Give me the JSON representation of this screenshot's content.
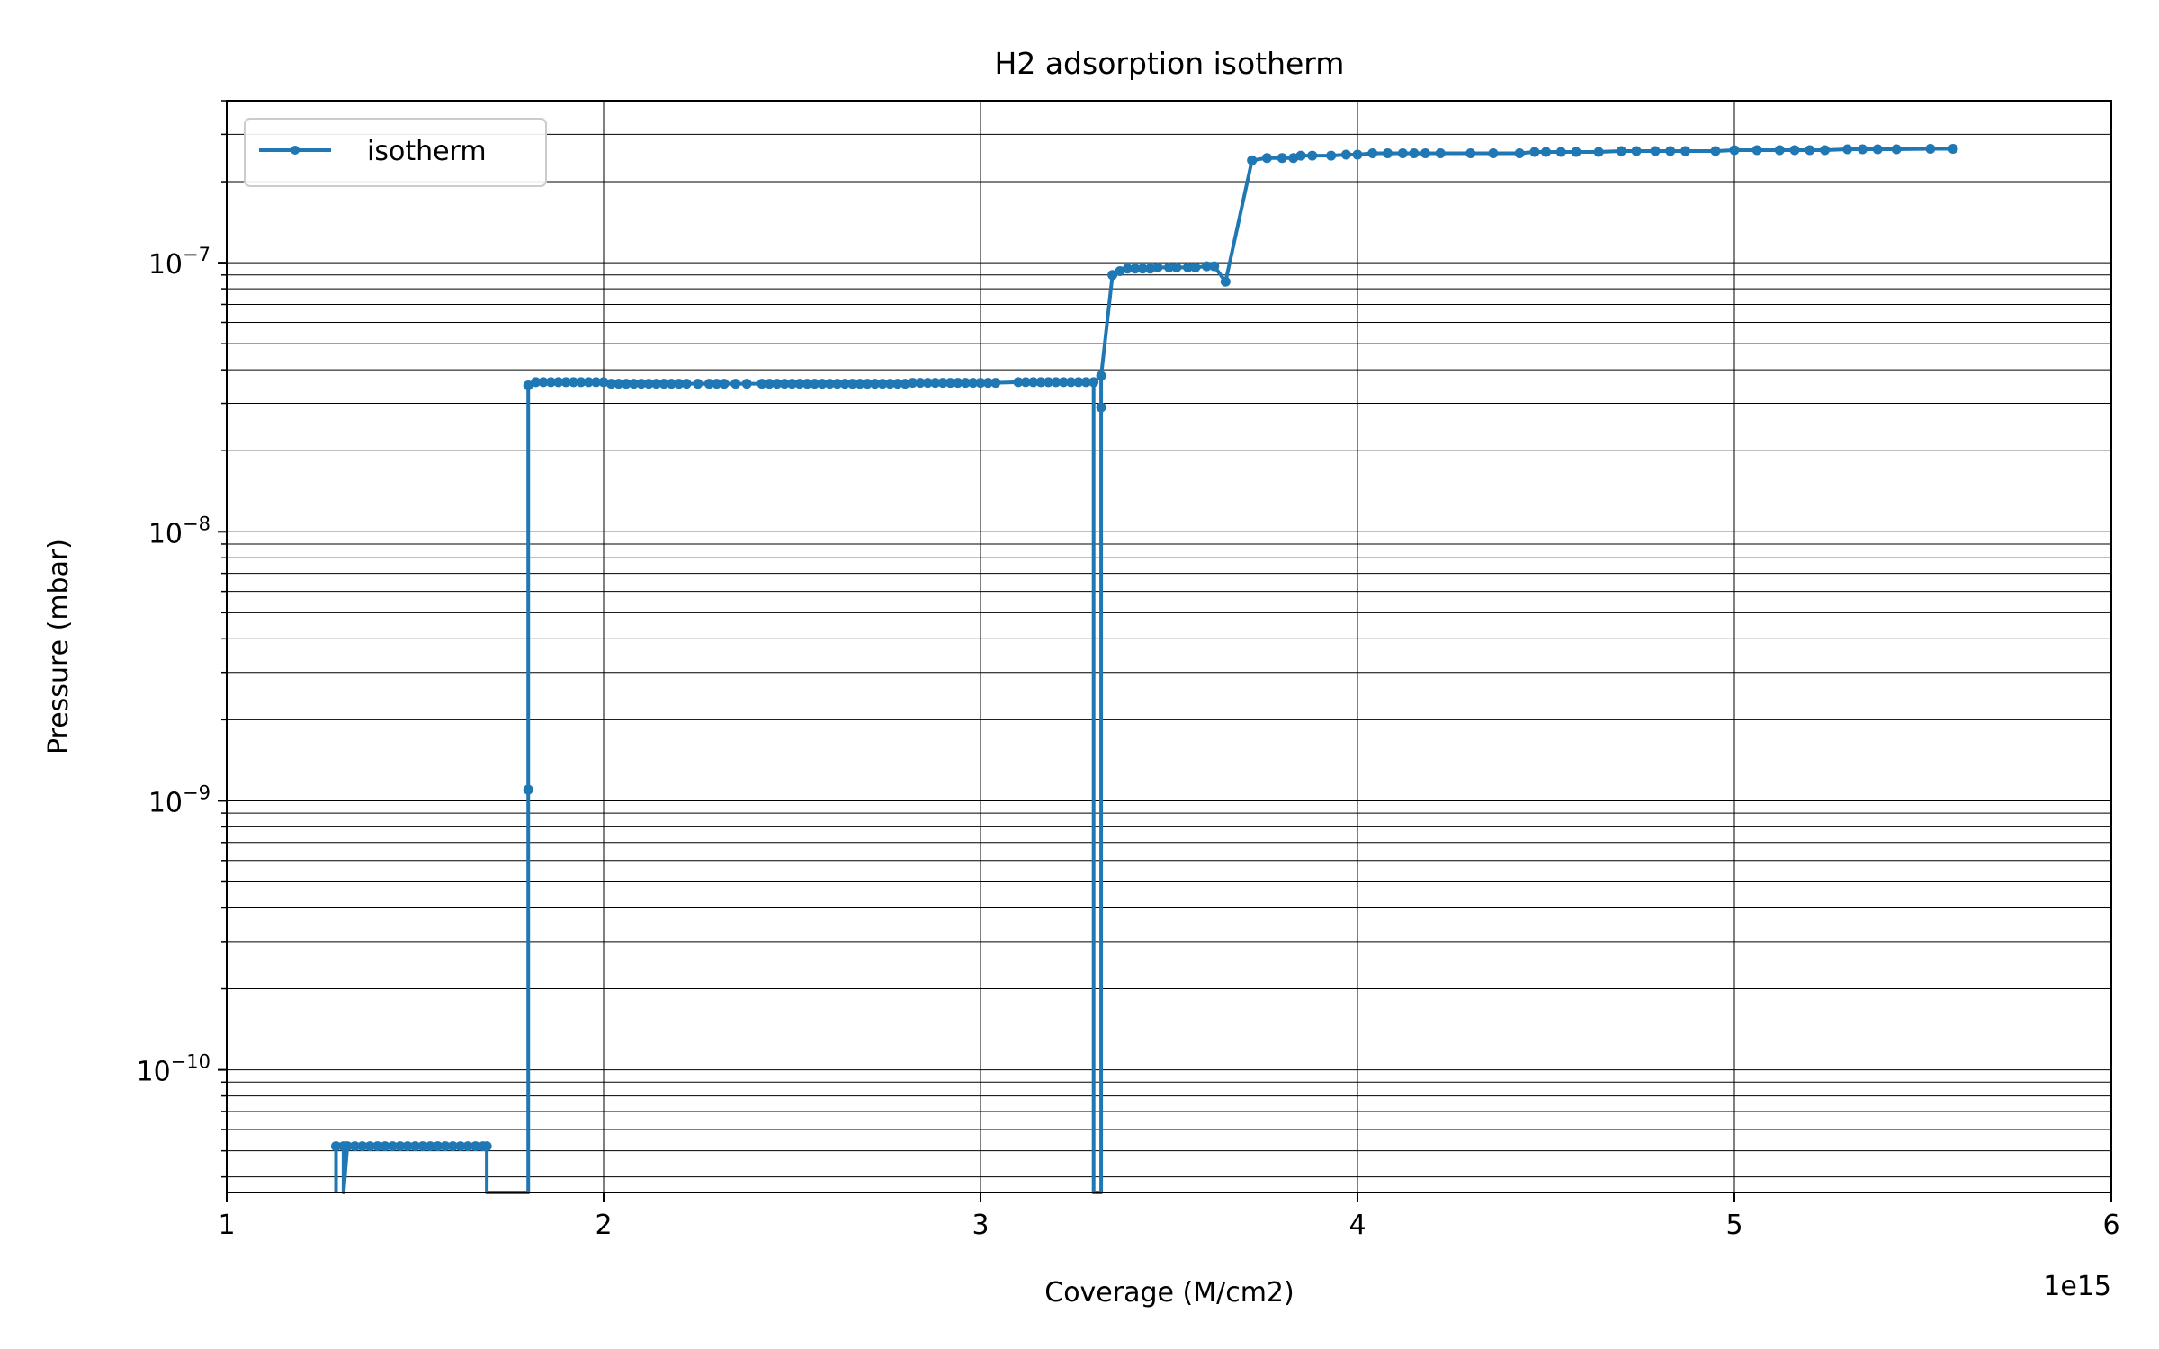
{
  "chart_data": {
    "type": "line",
    "title": "H2 adsorption isotherm",
    "xlabel": "Coverage (M/cm2)",
    "ylabel": "Pressure (mbar)",
    "x_offset_label": "1e15",
    "xscale": "linear",
    "yscale": "log",
    "xlim": [
      1000000000000000.0,
      6000000000000000.0
    ],
    "ylim": [
      3.5e-11,
      4e-07
    ],
    "grid": "major and minor",
    "legend_position": "upper left",
    "x_ticks": [
      1000000000000000.0,
      2000000000000000.0,
      3000000000000000.0,
      4000000000000000.0,
      5000000000000000.0,
      6000000000000000.0
    ],
    "x_tick_labels": [
      "1",
      "2",
      "3",
      "4",
      "5",
      "6"
    ],
    "y_ticks": [
      1e-10,
      1e-09,
      1e-08,
      1e-07
    ],
    "y_tick_labels": [
      {
        "base": "10",
        "exp": "−10"
      },
      {
        "base": "10",
        "exp": "−9"
      },
      {
        "base": "10",
        "exp": "−8"
      },
      {
        "base": "10",
        "exp": "−7"
      }
    ],
    "series": [
      {
        "name": "isotherm",
        "color": "#1f77b4",
        "marker": "circle",
        "points": [
          [
            1290000000000000.0,
            0
          ],
          [
            1290000000000000.0,
            5.2e-11
          ],
          [
            1310000000000000.0,
            5.2e-11
          ],
          [
            1310000000000000.0,
            0
          ],
          [
            1320000000000000.0,
            5.2e-11
          ],
          [
            1340000000000000.0,
            5.2e-11
          ],
          [
            1360000000000000.0,
            5.2e-11
          ],
          [
            1380000000000000.0,
            5.2e-11
          ],
          [
            1400000000000000.0,
            5.2e-11
          ],
          [
            1420000000000000.0,
            5.2e-11
          ],
          [
            1440000000000000.0,
            5.2e-11
          ],
          [
            1460000000000000.0,
            5.2e-11
          ],
          [
            1480000000000000.0,
            5.2e-11
          ],
          [
            1500000000000000.0,
            5.2e-11
          ],
          [
            1520000000000000.0,
            5.2e-11
          ],
          [
            1540000000000000.0,
            5.2e-11
          ],
          [
            1560000000000000.0,
            5.2e-11
          ],
          [
            1580000000000000.0,
            5.2e-11
          ],
          [
            1600000000000000.0,
            5.2e-11
          ],
          [
            1620000000000000.0,
            5.2e-11
          ],
          [
            1640000000000000.0,
            5.2e-11
          ],
          [
            1660000000000000.0,
            5.2e-11
          ],
          [
            1680000000000000.0,
            5.2e-11
          ],
          [
            1690000000000000.0,
            5.2e-11
          ],
          [
            1690000000000000.0,
            0
          ],
          [
            1800000000000000.0,
            0
          ],
          [
            1800000000000000.0,
            1.1e-09
          ],
          [
            1800000000000000.0,
            3.5e-08
          ],
          [
            1820000000000000.0,
            3.6e-08
          ],
          [
            1840000000000000.0,
            3.6e-08
          ],
          [
            1860000000000000.0,
            3.6e-08
          ],
          [
            1880000000000000.0,
            3.6e-08
          ],
          [
            1900000000000000.0,
            3.6e-08
          ],
          [
            1920000000000000.0,
            3.6e-08
          ],
          [
            1940000000000000.0,
            3.6e-08
          ],
          [
            1960000000000000.0,
            3.6e-08
          ],
          [
            1980000000000000.0,
            3.6e-08
          ],
          [
            2000000000000000.0,
            3.6e-08
          ],
          [
            2020000000000000.0,
            3.55e-08
          ],
          [
            2040000000000000.0,
            3.55e-08
          ],
          [
            2060000000000000.0,
            3.55e-08
          ],
          [
            2080000000000000.0,
            3.55e-08
          ],
          [
            2100000000000000.0,
            3.55e-08
          ],
          [
            2120000000000000.0,
            3.55e-08
          ],
          [
            2140000000000000.0,
            3.55e-08
          ],
          [
            2160000000000000.0,
            3.55e-08
          ],
          [
            2180000000000000.0,
            3.55e-08
          ],
          [
            2200000000000000.0,
            3.55e-08
          ],
          [
            2220000000000000.0,
            3.55e-08
          ],
          [
            2250000000000000.0,
            3.55e-08
          ],
          [
            2280000000000000.0,
            3.55e-08
          ],
          [
            2300000000000000.0,
            3.55e-08
          ],
          [
            2320000000000000.0,
            3.55e-08
          ],
          [
            2350000000000000.0,
            3.55e-08
          ],
          [
            2380000000000000.0,
            3.55e-08
          ],
          [
            2420000000000000.0,
            3.55e-08
          ],
          [
            2440000000000000.0,
            3.55e-08
          ],
          [
            2460000000000000.0,
            3.55e-08
          ],
          [
            2480000000000000.0,
            3.55e-08
          ],
          [
            2500000000000000.0,
            3.55e-08
          ],
          [
            2520000000000000.0,
            3.55e-08
          ],
          [
            2540000000000000.0,
            3.55e-08
          ],
          [
            2560000000000000.0,
            3.55e-08
          ],
          [
            2580000000000000.0,
            3.55e-08
          ],
          [
            2600000000000000.0,
            3.55e-08
          ],
          [
            2620000000000000.0,
            3.55e-08
          ],
          [
            2640000000000000.0,
            3.55e-08
          ],
          [
            2660000000000000.0,
            3.55e-08
          ],
          [
            2680000000000000.0,
            3.55e-08
          ],
          [
            2700000000000000.0,
            3.55e-08
          ],
          [
            2720000000000000.0,
            3.55e-08
          ],
          [
            2740000000000000.0,
            3.55e-08
          ],
          [
            2760000000000000.0,
            3.55e-08
          ],
          [
            2780000000000000.0,
            3.55e-08
          ],
          [
            2800000000000000.0,
            3.55e-08
          ],
          [
            2820000000000000.0,
            3.58e-08
          ],
          [
            2840000000000000.0,
            3.58e-08
          ],
          [
            2860000000000000.0,
            3.58e-08
          ],
          [
            2880000000000000.0,
            3.58e-08
          ],
          [
            2900000000000000.0,
            3.58e-08
          ],
          [
            2920000000000000.0,
            3.58e-08
          ],
          [
            2940000000000000.0,
            3.58e-08
          ],
          [
            2960000000000000.0,
            3.58e-08
          ],
          [
            2980000000000000.0,
            3.58e-08
          ],
          [
            3000000000000000.0,
            3.58e-08
          ],
          [
            3020000000000000.0,
            3.58e-08
          ],
          [
            3040000000000000.0,
            3.58e-08
          ],
          [
            3100000000000000.0,
            3.6e-08
          ],
          [
            3120000000000000.0,
            3.6e-08
          ],
          [
            3140000000000000.0,
            3.6e-08
          ],
          [
            3160000000000000.0,
            3.6e-08
          ],
          [
            3180000000000000.0,
            3.6e-08
          ],
          [
            3200000000000000.0,
            3.6e-08
          ],
          [
            3220000000000000.0,
            3.6e-08
          ],
          [
            3240000000000000.0,
            3.6e-08
          ],
          [
            3260000000000000.0,
            3.6e-08
          ],
          [
            3280000000000000.0,
            3.6e-08
          ],
          [
            3300000000000000.0,
            3.6e-08
          ],
          [
            3300000000000000.0,
            0
          ],
          [
            3320000000000000.0,
            0
          ],
          [
            3320000000000000.0,
            2.9e-08
          ],
          [
            3320000000000000.0,
            3.8e-08
          ],
          [
            3350000000000000.0,
            9e-08
          ],
          [
            3370000000000000.0,
            9.3e-08
          ],
          [
            3390000000000000.0,
            9.5e-08
          ],
          [
            3410000000000000.0,
            9.5e-08
          ],
          [
            3430000000000000.0,
            9.5e-08
          ],
          [
            3450000000000000.0,
            9.5e-08
          ],
          [
            3470000000000000.0,
            9.6e-08
          ],
          [
            3500000000000000.0,
            9.6e-08
          ],
          [
            3520000000000000.0,
            9.6e-08
          ],
          [
            3550000000000000.0,
            9.6e-08
          ],
          [
            3570000000000000.0,
            9.6e-08
          ],
          [
            3600000000000000.0,
            9.7e-08
          ],
          [
            3620000000000000.0,
            9.7e-08
          ],
          [
            3650000000000000.0,
            8.5e-08
          ],
          [
            3720000000000000.0,
            2.4e-07
          ],
          [
            3760000000000000.0,
            2.45e-07
          ],
          [
            3800000000000000.0,
            2.45e-07
          ],
          [
            3830000000000000.0,
            2.45e-07
          ],
          [
            3850000000000000.0,
            2.5e-07
          ],
          [
            3880000000000000.0,
            2.5e-07
          ],
          [
            3930000000000000.0,
            2.5e-07
          ],
          [
            3970000000000000.0,
            2.52e-07
          ],
          [
            4000000000000000.0,
            2.52e-07
          ],
          [
            4040000000000000.0,
            2.55e-07
          ],
          [
            4080000000000000.0,
            2.55e-07
          ],
          [
            4120000000000000.0,
            2.55e-07
          ],
          [
            4150000000000000.0,
            2.55e-07
          ],
          [
            4180000000000000.0,
            2.55e-07
          ],
          [
            4220000000000000.0,
            2.55e-07
          ],
          [
            4300000000000000.0,
            2.55e-07
          ],
          [
            4360000000000000.0,
            2.55e-07
          ],
          [
            4430000000000000.0,
            2.55e-07
          ],
          [
            4470000000000000.0,
            2.58e-07
          ],
          [
            4500000000000000.0,
            2.58e-07
          ],
          [
            4540000000000000.0,
            2.58e-07
          ],
          [
            4580000000000000.0,
            2.58e-07
          ],
          [
            4640000000000000.0,
            2.58e-07
          ],
          [
            4700000000000000.0,
            2.6e-07
          ],
          [
            4740000000000000.0,
            2.6e-07
          ],
          [
            4790000000000000.0,
            2.6e-07
          ],
          [
            4830000000000000.0,
            2.6e-07
          ],
          [
            4870000000000000.0,
            2.6e-07
          ],
          [
            4950000000000000.0,
            2.6e-07
          ],
          [
            5000000000000000.0,
            2.62e-07
          ],
          [
            5060000000000000.0,
            2.62e-07
          ],
          [
            5120000000000000.0,
            2.62e-07
          ],
          [
            5160000000000000.0,
            2.62e-07
          ],
          [
            5200000000000000.0,
            2.62e-07
          ],
          [
            5240000000000000.0,
            2.62e-07
          ],
          [
            5300000000000000.0,
            2.64e-07
          ],
          [
            5340000000000000.0,
            2.64e-07
          ],
          [
            5380000000000000.0,
            2.64e-07
          ],
          [
            5430000000000000.0,
            2.64e-07
          ],
          [
            5520000000000000.0,
            2.65e-07
          ],
          [
            5580000000000000.0,
            2.65e-07
          ]
        ]
      }
    ]
  }
}
